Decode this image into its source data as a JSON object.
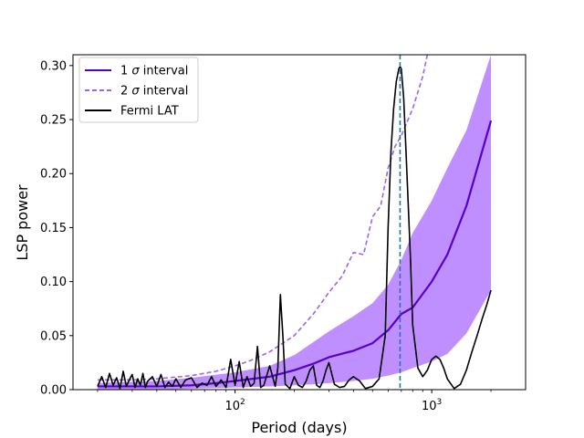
{
  "chart_data": {
    "type": "line",
    "x_scale": "log",
    "xlabel": "Period (days)",
    "ylabel": "LSP power",
    "xlim": [
      15,
      3000
    ],
    "ylim": [
      0,
      0.31
    ],
    "x_ticks": [
      {
        "value": 100,
        "label_base": "10",
        "label_exp": "2"
      },
      {
        "value": 1000,
        "label_base": "10",
        "label_exp": "3"
      }
    ],
    "y_ticks": [
      {
        "value": 0.0,
        "label": "0.00"
      },
      {
        "value": 0.05,
        "label": "0.05"
      },
      {
        "value": 0.1,
        "label": "0.10"
      },
      {
        "value": 0.15,
        "label": "0.15"
      },
      {
        "value": 0.2,
        "label": "0.20"
      },
      {
        "value": 0.25,
        "label": "0.25"
      },
      {
        "value": 0.3,
        "label": "0.30"
      }
    ],
    "legend": {
      "position": "top-left",
      "entries": [
        {
          "label_pre": "1 ",
          "label_sym": "σ",
          "label_post": " interval",
          "color": "#5500cc",
          "style": "solid"
        },
        {
          "label_pre": "2 ",
          "label_sym": "σ",
          "label_post": " interval",
          "color": "#9966ee",
          "style": "dashed"
        },
        {
          "label_pre": "Fermi LAT",
          "label_sym": "",
          "label_post": "",
          "color": "#000000",
          "style": "solid"
        }
      ]
    },
    "vline": {
      "x": 690,
      "color": "#1f77b4"
    },
    "band": {
      "name": "1 sigma band",
      "color": "#bf8fff",
      "x": [
        20,
        40,
        60,
        100,
        150,
        200,
        250,
        300,
        400,
        500,
        600,
        700,
        800,
        1000,
        1200,
        1500,
        2000
      ],
      "lower": [
        0.0,
        0.0,
        0.001,
        0.002,
        0.003,
        0.004,
        0.005,
        0.006,
        0.008,
        0.01,
        0.013,
        0.016,
        0.02,
        0.026,
        0.033,
        0.052,
        0.092
      ],
      "upper": [
        0.006,
        0.008,
        0.011,
        0.016,
        0.022,
        0.032,
        0.044,
        0.054,
        0.068,
        0.08,
        0.097,
        0.12,
        0.145,
        0.175,
        0.205,
        0.24,
        0.31
      ]
    },
    "series": [
      {
        "name": "1 sigma interval",
        "color": "#5500cc",
        "dash": "solid",
        "x": [
          20,
          30,
          40,
          60,
          80,
          100,
          150,
          200,
          250,
          300,
          400,
          500,
          600,
          700,
          800,
          1000,
          1200,
          1500,
          2000
        ],
        "y": [
          0.003,
          0.003,
          0.003,
          0.004,
          0.006,
          0.008,
          0.012,
          0.018,
          0.024,
          0.03,
          0.036,
          0.043,
          0.055,
          0.07,
          0.076,
          0.1,
          0.125,
          0.17,
          0.249
        ]
      },
      {
        "name": "2 sigma interval",
        "color": "#9966ee",
        "dash": "dashed",
        "x": [
          20,
          30,
          40,
          60,
          80,
          100,
          120,
          150,
          200,
          250,
          300,
          350,
          400,
          450,
          500,
          550,
          600,
          650,
          700,
          800,
          900,
          950
        ],
        "y": [
          0.009,
          0.009,
          0.01,
          0.013,
          0.017,
          0.022,
          0.027,
          0.035,
          0.05,
          0.07,
          0.09,
          0.105,
          0.127,
          0.125,
          0.16,
          0.17,
          0.205,
          0.225,
          0.235,
          0.26,
          0.29,
          0.31
        ]
      },
      {
        "name": "Fermi LAT",
        "color": "#000000",
        "dash": "solid",
        "x": [
          20,
          21,
          22,
          23,
          24,
          25,
          26,
          27,
          28,
          29,
          30,
          31,
          32,
          33,
          34,
          35,
          36,
          38,
          40,
          42,
          44,
          46,
          48,
          50,
          53,
          56,
          60,
          64,
          68,
          72,
          76,
          80,
          85,
          90,
          95,
          100,
          105,
          110,
          115,
          120,
          125,
          130,
          135,
          140,
          150,
          160,
          165,
          170,
          175,
          180,
          190,
          200,
          210,
          220,
          230,
          240,
          250,
          260,
          270,
          280,
          290,
          300,
          320,
          340,
          360,
          380,
          400,
          430,
          460,
          500,
          540,
          580,
          600,
          620,
          640,
          660,
          680,
          690,
          700,
          720,
          740,
          760,
          780,
          800,
          850,
          900,
          950,
          1000,
          1050,
          1100,
          1150,
          1200,
          1300,
          1400,
          1500,
          1600,
          1700,
          1800,
          1900,
          2000
        ],
        "y": [
          0.003,
          0.012,
          0.002,
          0.015,
          0.004,
          0.011,
          0.001,
          0.017,
          0.003,
          0.009,
          0.014,
          0.002,
          0.01,
          0.004,
          0.015,
          0.002,
          0.008,
          0.012,
          0.003,
          0.014,
          0.002,
          0.007,
          0.003,
          0.01,
          0.002,
          0.009,
          0.011,
          0.002,
          0.006,
          0.004,
          0.012,
          0.003,
          0.009,
          0.002,
          0.028,
          0.004,
          0.026,
          0.002,
          0.012,
          0.003,
          0.006,
          0.04,
          0.002,
          0.004,
          0.022,
          0.003,
          0.02,
          0.088,
          0.05,
          0.005,
          0.001,
          0.012,
          0.004,
          0.002,
          0.008,
          0.018,
          0.022,
          0.004,
          0.002,
          0.008,
          0.018,
          0.025,
          0.005,
          0.002,
          0.003,
          0.009,
          0.012,
          0.008,
          0.001,
          0.003,
          0.01,
          0.05,
          0.15,
          0.22,
          0.26,
          0.285,
          0.297,
          0.299,
          0.297,
          0.27,
          0.22,
          0.17,
          0.12,
          0.06,
          0.02,
          0.012,
          0.018,
          0.028,
          0.031,
          0.028,
          0.02,
          0.01,
          0.001,
          0.005,
          0.018,
          0.035,
          0.05,
          0.065,
          0.078,
          0.092
        ]
      }
    ]
  }
}
